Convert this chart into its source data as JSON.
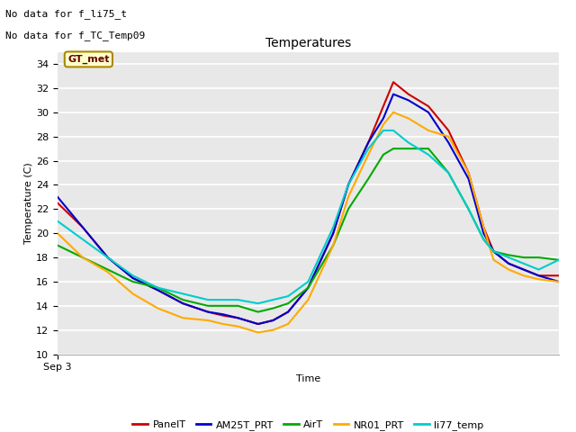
{
  "title": "Temperatures",
  "xlabel": "Time",
  "ylabel": "Temperature (C)",
  "xlim": [
    0,
    100
  ],
  "ylim": [
    10,
    35
  ],
  "yticks": [
    10,
    12,
    14,
    16,
    18,
    20,
    22,
    24,
    26,
    28,
    30,
    32,
    34
  ],
  "xticklabel": "Sep 3",
  "annotations": [
    "No data for f_li75_t",
    "No data for f_TC_Temp09"
  ],
  "legend_label": "GT_met",
  "fig_bg_color": "#ffffff",
  "plot_bg_color": "#e8e8e8",
  "series": {
    "PanelT": {
      "color": "#cc0000",
      "points": [
        [
          0,
          22.5
        ],
        [
          5,
          20.5
        ],
        [
          10,
          18.0
        ],
        [
          15,
          16.3
        ],
        [
          20,
          15.3
        ],
        [
          25,
          14.2
        ],
        [
          30,
          13.5
        ],
        [
          33,
          13.2
        ],
        [
          36,
          13.0
        ],
        [
          40,
          12.5
        ],
        [
          43,
          12.8
        ],
        [
          46,
          13.5
        ],
        [
          50,
          15.5
        ],
        [
          55,
          20.0
        ],
        [
          58,
          24.0
        ],
        [
          62,
          27.5
        ],
        [
          65,
          30.5
        ],
        [
          67,
          32.5
        ],
        [
          70,
          31.5
        ],
        [
          74,
          30.5
        ],
        [
          78,
          28.5
        ],
        [
          82,
          25.0
        ],
        [
          85,
          20.5
        ],
        [
          87,
          18.5
        ],
        [
          90,
          17.5
        ],
        [
          93,
          17.0
        ],
        [
          96,
          16.5
        ],
        [
          100,
          16.5
        ]
      ]
    },
    "AM25T_PRT": {
      "color": "#0000cc",
      "points": [
        [
          0,
          23.0
        ],
        [
          5,
          20.5
        ],
        [
          10,
          18.0
        ],
        [
          15,
          16.3
        ],
        [
          20,
          15.3
        ],
        [
          25,
          14.2
        ],
        [
          30,
          13.5
        ],
        [
          33,
          13.3
        ],
        [
          36,
          13.0
        ],
        [
          40,
          12.5
        ],
        [
          43,
          12.8
        ],
        [
          46,
          13.5
        ],
        [
          50,
          15.5
        ],
        [
          55,
          20.0
        ],
        [
          58,
          24.0
        ],
        [
          62,
          27.5
        ],
        [
          65,
          29.5
        ],
        [
          67,
          31.5
        ],
        [
          70,
          31.0
        ],
        [
          74,
          30.0
        ],
        [
          78,
          27.5
        ],
        [
          82,
          24.5
        ],
        [
          85,
          20.0
        ],
        [
          87,
          18.5
        ],
        [
          90,
          17.5
        ],
        [
          93,
          17.0
        ],
        [
          96,
          16.5
        ],
        [
          100,
          16.0
        ]
      ]
    },
    "AirT": {
      "color": "#00aa00",
      "points": [
        [
          0,
          19.0
        ],
        [
          5,
          18.0
        ],
        [
          10,
          17.0
        ],
        [
          15,
          16.0
        ],
        [
          20,
          15.5
        ],
        [
          25,
          14.5
        ],
        [
          30,
          14.0
        ],
        [
          33,
          14.0
        ],
        [
          36,
          14.0
        ],
        [
          40,
          13.5
        ],
        [
          43,
          13.8
        ],
        [
          46,
          14.2
        ],
        [
          50,
          15.5
        ],
        [
          55,
          19.0
        ],
        [
          58,
          22.0
        ],
        [
          62,
          24.5
        ],
        [
          65,
          26.5
        ],
        [
          67,
          27.0
        ],
        [
          70,
          27.0
        ],
        [
          74,
          27.0
        ],
        [
          78,
          25.0
        ],
        [
          82,
          22.0
        ],
        [
          85,
          19.5
        ],
        [
          87,
          18.5
        ],
        [
          90,
          18.2
        ],
        [
          93,
          18.0
        ],
        [
          96,
          18.0
        ],
        [
          100,
          17.8
        ]
      ]
    },
    "NR01_PRT": {
      "color": "#ffaa00",
      "points": [
        [
          0,
          20.0
        ],
        [
          5,
          18.0
        ],
        [
          10,
          16.8
        ],
        [
          15,
          15.0
        ],
        [
          20,
          13.8
        ],
        [
          25,
          13.0
        ],
        [
          30,
          12.8
        ],
        [
          33,
          12.5
        ],
        [
          36,
          12.3
        ],
        [
          40,
          11.8
        ],
        [
          43,
          12.0
        ],
        [
          46,
          12.5
        ],
        [
          50,
          14.5
        ],
        [
          55,
          19.0
        ],
        [
          58,
          23.0
        ],
        [
          62,
          26.5
        ],
        [
          65,
          29.0
        ],
        [
          67,
          30.0
        ],
        [
          70,
          29.5
        ],
        [
          74,
          28.5
        ],
        [
          78,
          28.0
        ],
        [
          82,
          25.0
        ],
        [
          85,
          20.5
        ],
        [
          87,
          17.8
        ],
        [
          90,
          17.0
        ],
        [
          93,
          16.5
        ],
        [
          96,
          16.2
        ],
        [
          100,
          16.0
        ]
      ]
    },
    "li77_temp": {
      "color": "#00cccc",
      "points": [
        [
          0,
          21.0
        ],
        [
          5,
          19.5
        ],
        [
          10,
          18.0
        ],
        [
          15,
          16.5
        ],
        [
          20,
          15.5
        ],
        [
          25,
          15.0
        ],
        [
          30,
          14.5
        ],
        [
          33,
          14.5
        ],
        [
          36,
          14.5
        ],
        [
          40,
          14.2
        ],
        [
          43,
          14.5
        ],
        [
          46,
          14.8
        ],
        [
          50,
          16.0
        ],
        [
          55,
          20.5
        ],
        [
          58,
          24.0
        ],
        [
          62,
          27.0
        ],
        [
          65,
          28.5
        ],
        [
          67,
          28.5
        ],
        [
          70,
          27.5
        ],
        [
          74,
          26.5
        ],
        [
          78,
          25.0
        ],
        [
          82,
          22.0
        ],
        [
          85,
          19.5
        ],
        [
          87,
          18.5
        ],
        [
          90,
          18.0
        ],
        [
          93,
          17.5
        ],
        [
          96,
          17.0
        ],
        [
          100,
          17.8
        ]
      ]
    }
  }
}
